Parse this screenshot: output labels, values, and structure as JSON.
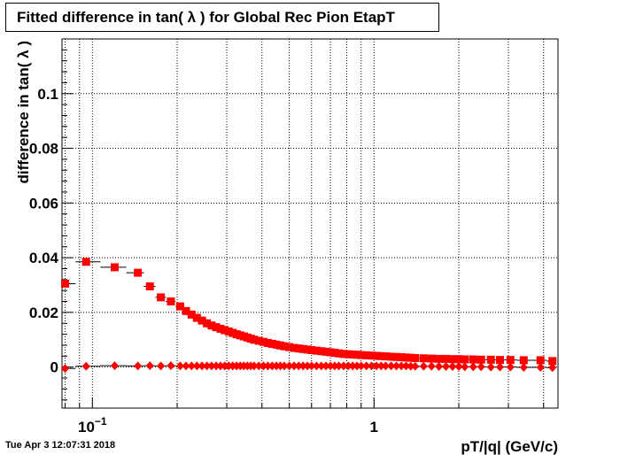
{
  "timestamp": "Tue Apr  3 12:07:31 2018",
  "chart_data": {
    "type": "scatter",
    "title": "Fitted difference in tan( λ ) for Global Rec Pion EtapT",
    "xlabel": "pT/|q| (GeV/c)",
    "ylabel": "difference in tan( λ )",
    "x_scale": "log",
    "xlim": [
      0.078,
      4.5
    ],
    "ylim": [
      -0.015,
      0.12
    ],
    "grid": true,
    "y_ticks": [
      0,
      0.02,
      0.04,
      0.06,
      0.08,
      0.1
    ],
    "y_tick_labels": [
      "0",
      "0.02",
      "0.04",
      "0.06",
      "0.08",
      "0.1"
    ],
    "x_tick_labels": [
      {
        "value": 0.1,
        "label": "10",
        "sup": "−1"
      },
      {
        "value": 1,
        "label": "1",
        "sup": ""
      }
    ],
    "series": [
      {
        "marker": "square",
        "color": "#ff0000",
        "x": [
          0.08,
          0.095,
          0.12,
          0.145,
          0.16,
          0.175,
          0.19,
          0.205,
          0.215,
          0.225,
          0.235,
          0.245,
          0.255,
          0.265,
          0.275,
          0.285,
          0.295,
          0.305,
          0.315,
          0.325,
          0.335,
          0.345,
          0.355,
          0.365,
          0.375,
          0.39,
          0.405,
          0.42,
          0.435,
          0.45,
          0.465,
          0.48,
          0.5,
          0.52,
          0.54,
          0.56,
          0.58,
          0.6,
          0.625,
          0.65,
          0.675,
          0.7,
          0.725,
          0.75,
          0.78,
          0.81,
          0.84,
          0.87,
          0.9,
          0.94,
          0.98,
          1.02,
          1.06,
          1.1,
          1.15,
          1.2,
          1.25,
          1.3,
          1.35,
          1.4,
          1.5,
          1.6,
          1.7,
          1.8,
          1.9,
          2.0,
          2.1,
          2.25,
          2.4,
          2.6,
          2.8,
          3.05,
          3.4,
          3.9,
          4.3
        ],
        "y": [
          0.0305,
          0.0385,
          0.0365,
          0.0345,
          0.0295,
          0.0255,
          0.024,
          0.0222,
          0.0205,
          0.0192,
          0.018,
          0.017,
          0.016,
          0.0152,
          0.0146,
          0.014,
          0.0135,
          0.013,
          0.0125,
          0.012,
          0.0116,
          0.0112,
          0.0108,
          0.0104,
          0.01,
          0.0096,
          0.0092,
          0.0088,
          0.0085,
          0.0082,
          0.0079,
          0.0076,
          0.0073,
          0.007,
          0.0068,
          0.0066,
          0.0064,
          0.0062,
          0.006,
          0.0058,
          0.0056,
          0.0054,
          0.0052,
          0.005,
          0.0048,
          0.0047,
          0.0046,
          0.0045,
          0.0044,
          0.0043,
          0.0042,
          0.0041,
          0.004,
          0.0039,
          0.0038,
          0.0037,
          0.0036,
          0.0035,
          0.0034,
          0.0033,
          0.0032,
          0.0031,
          0.003,
          0.003,
          0.0029,
          0.0029,
          0.0028,
          0.0028,
          0.0027,
          0.0027,
          0.0026,
          0.0026,
          0.0025,
          0.0025,
          0.0022
        ]
      },
      {
        "marker": "diamond",
        "color": "#ff0000",
        "x": [
          0.08,
          0.095,
          0.12,
          0.145,
          0.16,
          0.175,
          0.19,
          0.205,
          0.215,
          0.225,
          0.235,
          0.245,
          0.255,
          0.265,
          0.275,
          0.285,
          0.295,
          0.305,
          0.315,
          0.325,
          0.335,
          0.345,
          0.355,
          0.365,
          0.375,
          0.39,
          0.405,
          0.42,
          0.435,
          0.45,
          0.465,
          0.48,
          0.5,
          0.52,
          0.54,
          0.56,
          0.58,
          0.6,
          0.625,
          0.65,
          0.675,
          0.7,
          0.725,
          0.75,
          0.78,
          0.81,
          0.84,
          0.87,
          0.9,
          0.94,
          0.98,
          1.02,
          1.06,
          1.1,
          1.15,
          1.2,
          1.25,
          1.3,
          1.35,
          1.4,
          1.5,
          1.6,
          1.7,
          1.8,
          1.9,
          2.0,
          2.1,
          2.25,
          2.4,
          2.6,
          2.8,
          3.05,
          3.4,
          3.9,
          4.3
        ],
        "y": [
          -0.0005,
          0.0003,
          0.0005,
          0.0004,
          0.0005,
          0.0004,
          0.0005,
          0.0004,
          0.0004,
          0.0004,
          0.0004,
          0.0004,
          0.0004,
          0.0004,
          0.0004,
          0.0004,
          0.0004,
          0.0004,
          0.0004,
          0.0004,
          0.0004,
          0.0004,
          0.0004,
          0.0004,
          0.0004,
          0.0004,
          0.0004,
          0.0004,
          0.0004,
          0.0004,
          0.0004,
          0.0004,
          0.0004,
          0.0004,
          0.0004,
          0.0004,
          0.0004,
          0.0004,
          0.0004,
          0.0004,
          0.0004,
          0.0004,
          0.0004,
          0.0004,
          0.0004,
          0.0004,
          0.0004,
          0.0004,
          0.0004,
          0.0004,
          0.0004,
          0.0004,
          0.0004,
          0.0004,
          0.0004,
          0.0004,
          0.0004,
          0.0004,
          0.0003,
          0.0003,
          0.0003,
          0.0003,
          0.0002,
          0.0002,
          0.0002,
          0.0002,
          0.0001,
          0.0001,
          0.0001,
          0.0,
          0.0,
          0.0,
          -0.0001,
          -0.0001,
          -0.0002
        ]
      }
    ]
  }
}
